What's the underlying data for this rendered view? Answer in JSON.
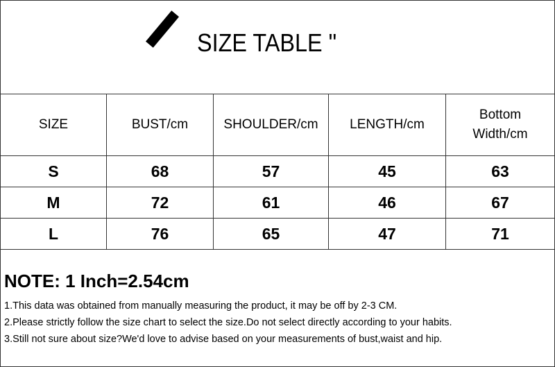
{
  "title": "SIZE TABLE \"",
  "table": {
    "headers": [
      "SIZE",
      "BUST/cm",
      "SHOULDER/cm",
      "LENGTH/cm",
      "Bottom Width/cm"
    ],
    "rows": [
      [
        "S",
        "68",
        "57",
        "45",
        "63"
      ],
      [
        "M",
        "72",
        "61",
        "46",
        "67"
      ],
      [
        "L",
        "76",
        "65",
        "47",
        "71"
      ]
    ]
  },
  "notes": {
    "title": "NOTE: 1 Inch=2.54cm",
    "items": [
      "1.This data was obtained from manually measuring the product, it may be off by 2-3 CM.",
      "2.Please strictly follow the size chart to select the size.Do not select directly according to your habits.",
      "3.Still not sure about size?We'd love to advise based on your measurements of bust,waist and hip."
    ]
  }
}
